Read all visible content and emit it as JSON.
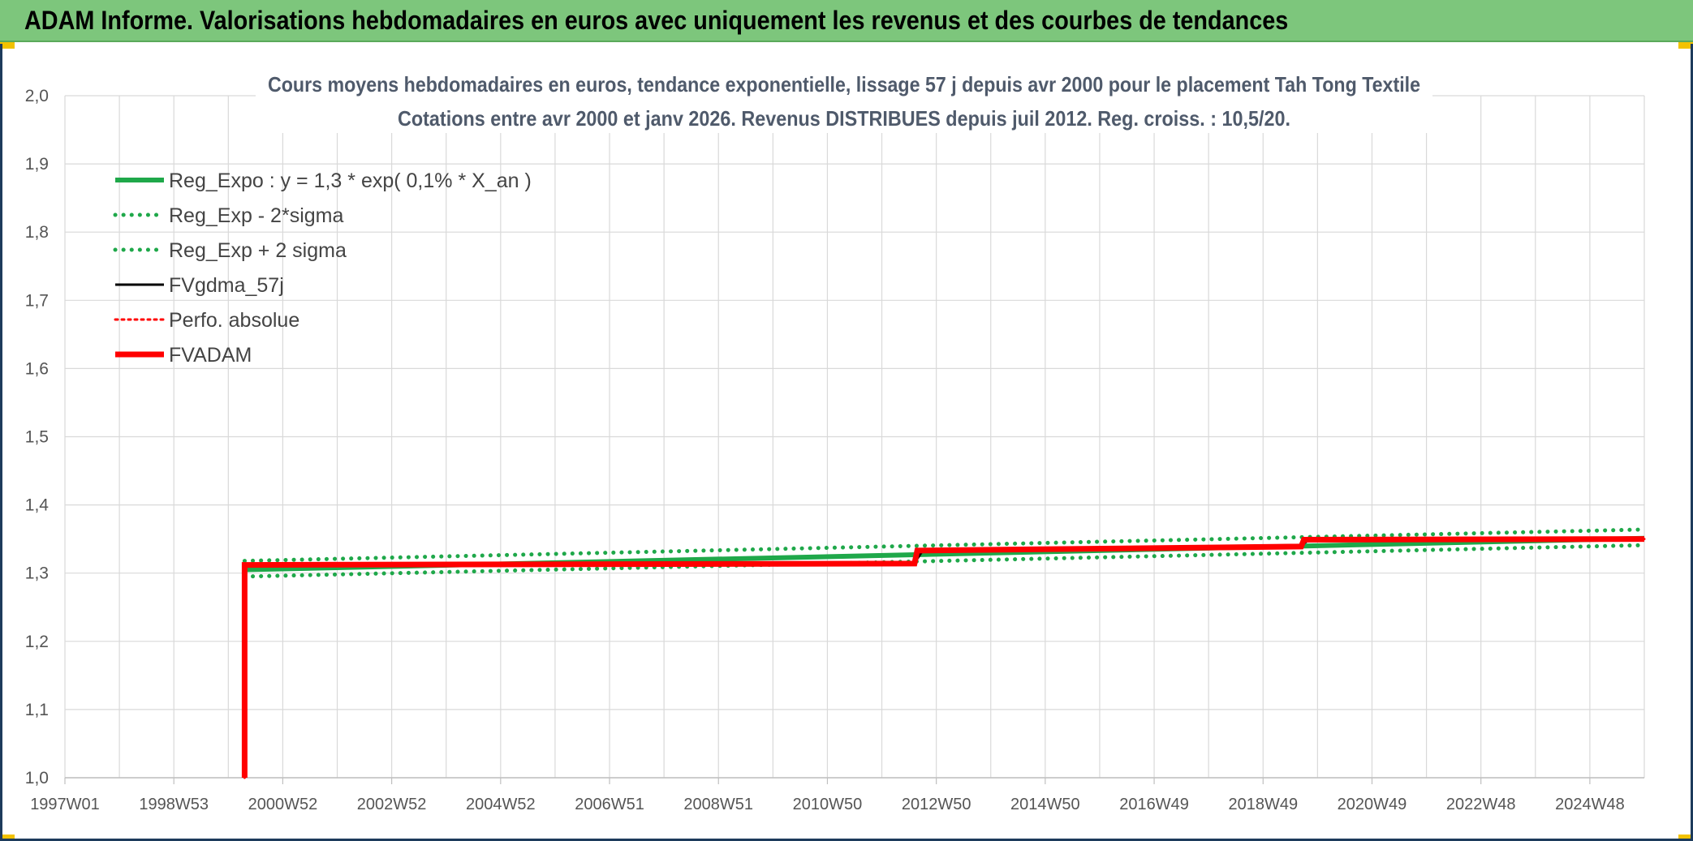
{
  "banner": {
    "title": "ADAM Informe. Valorisations hebdomadaires en euros avec uniquement les revenus et des courbes de tendances"
  },
  "chart_data": {
    "type": "line",
    "title": "Cours moyens hebdomadaires en euros, tendance exponentielle, lissage 57 j depuis avr 2000 pour le placement Tah Tong Textile",
    "subtitle": "Cotations entre avr 2000 et janv 2026. Revenus DISTRIBUES depuis juil 2012. Reg. croiss. : 10,5/20.",
    "xlabel": "",
    "ylabel": "",
    "ylim": [
      1.0,
      2.0
    ],
    "xlim": [
      1997.0,
      2026.0
    ],
    "y_ticks": [
      "1,0",
      "1,1",
      "1,2",
      "1,3",
      "1,4",
      "1,5",
      "1,6",
      "1,7",
      "1,8",
      "1,9",
      "2,0"
    ],
    "y_tick_values": [
      1.0,
      1.1,
      1.2,
      1.3,
      1.4,
      1.5,
      1.6,
      1.7,
      1.8,
      1.9,
      2.0
    ],
    "x_ticks": [
      "1997W01",
      "1998W53",
      "2000W52",
      "2002W52",
      "2004W52",
      "2006W51",
      "2008W51",
      "2010W50",
      "2012W50",
      "2014W50",
      "2016W49",
      "2018W49",
      "2020W49",
      "2022W48",
      "2024W48"
    ],
    "x_tick_values": [
      1997.0,
      1999.0,
      2001.0,
      2003.0,
      2005.0,
      2007.0,
      2009.0,
      2011.0,
      2013.0,
      2015.0,
      2017.0,
      2019.0,
      2021.0,
      2023.0,
      2025.0
    ],
    "grid": true,
    "legend_position": "top-left",
    "series": [
      {
        "name": "Reg_Expo : y = 1,3 * exp( 0,1% *  X_an )",
        "color": "#1fa84a",
        "style": "solid-thick",
        "x": [
          2000.3,
          2026.0
        ],
        "y": [
          1.305,
          1.351
        ]
      },
      {
        "name": "Reg_Exp - 2*sigma",
        "color": "#1fa84a",
        "style": "dotted",
        "x": [
          2000.3,
          2026.0
        ],
        "y": [
          1.295,
          1.341
        ]
      },
      {
        "name": "Reg_Exp + 2 sigma",
        "color": "#1fa84a",
        "style": "dotted",
        "x": [
          2000.3,
          2026.0
        ],
        "y": [
          1.318,
          1.364
        ]
      },
      {
        "name": "FVgdma_57j",
        "color": "#000000",
        "style": "solid",
        "x": [
          2000.3,
          2000.3,
          2012.6,
          2012.75,
          2019.7,
          2019.85,
          2026.0
        ],
        "y": [
          1.0,
          1.31,
          1.315,
          1.333,
          1.341,
          1.349,
          1.35
        ]
      },
      {
        "name": "Perfo. absolue",
        "color": "#ff0000",
        "style": "dotted",
        "x": [
          2000.3,
          2000.3,
          2012.6,
          2012.65,
          2019.7,
          2019.75,
          2026.0
        ],
        "y": [
          1.0,
          1.313,
          1.313,
          1.335,
          1.34,
          1.35,
          1.35
        ]
      },
      {
        "name": "FVADAM",
        "color": "#ff0000",
        "style": "solid-thick",
        "x": [
          2000.3,
          2000.3,
          2012.6,
          2012.65,
          2019.7,
          2019.75,
          2026.0
        ],
        "y": [
          1.0,
          1.312,
          1.314,
          1.333,
          1.339,
          1.349,
          1.35
        ]
      }
    ]
  }
}
